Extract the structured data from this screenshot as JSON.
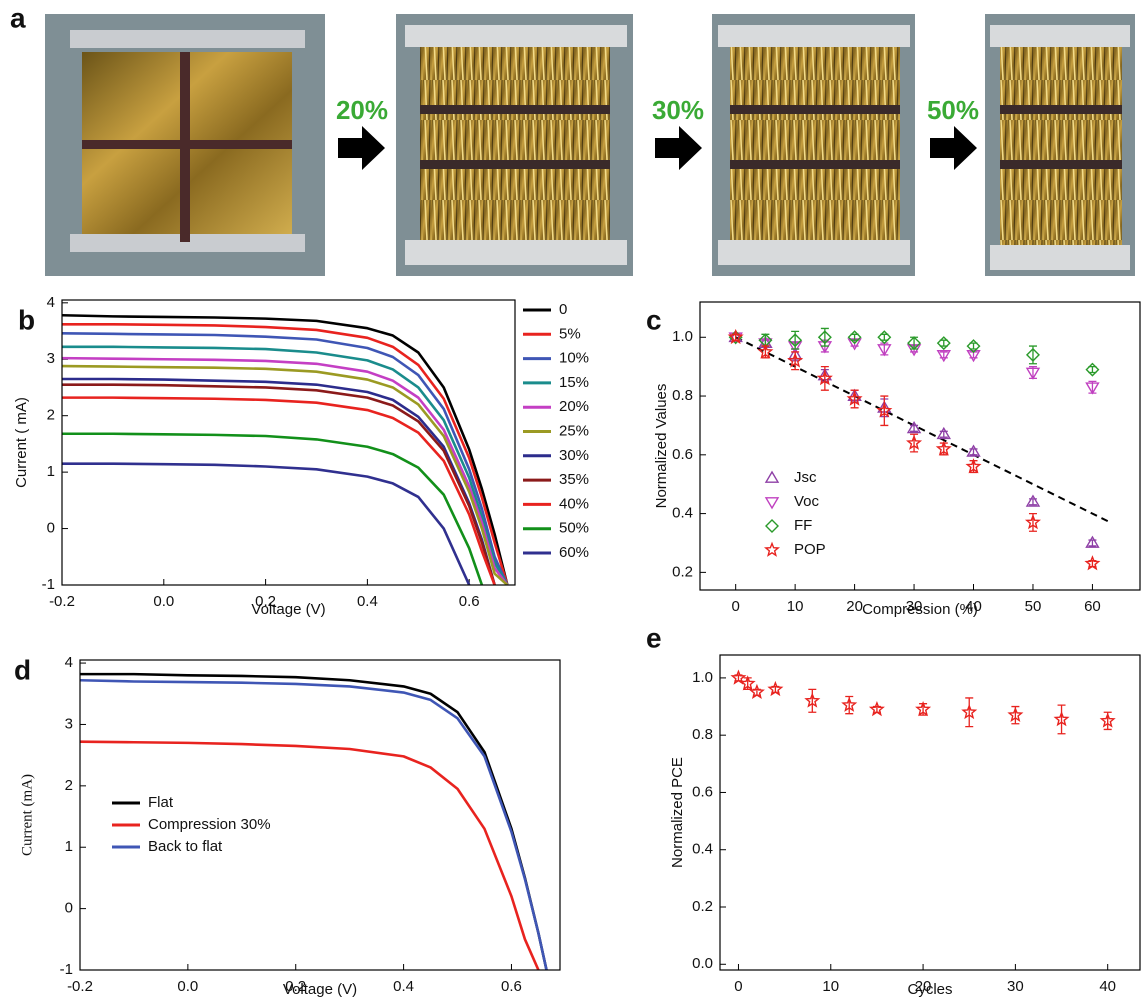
{
  "panel_a": {
    "label": "a",
    "steps": [
      "20%",
      "30%",
      "50%"
    ]
  },
  "chart_data": [
    {
      "type": "line",
      "panel_label": "b",
      "xlabel": "Voltage (V)",
      "ylabel": "Current ( mA)",
      "x": [
        -0.2,
        -0.1,
        0,
        0.1,
        0.2,
        0.3,
        0.4,
        0.45,
        0.5,
        0.55,
        0.6,
        0.625,
        0.65,
        0.675
      ],
      "xlim": [
        -0.2,
        0.69
      ],
      "ylim": [
        -1,
        4.05
      ],
      "xticks": [
        -0.2,
        {
          "value": 0,
          "label": "0.0"
        },
        0.2,
        0.4,
        0.6
      ],
      "yticks": [
        -1,
        0,
        1,
        2,
        3,
        4
      ],
      "legend": "right",
      "series": [
        {
          "name": "0",
          "color": "#000000",
          "values": [
            3.78,
            3.76,
            3.75,
            3.74,
            3.72,
            3.68,
            3.55,
            3.42,
            3.12,
            2.5,
            1.4,
            0.7,
            -0.1,
            -1.0
          ]
        },
        {
          "name": "5%",
          "color": "#e8231f",
          "values": [
            3.62,
            3.62,
            3.61,
            3.6,
            3.57,
            3.52,
            3.38,
            3.22,
            2.9,
            2.3,
            1.25,
            0.55,
            -0.25,
            -1.0
          ]
        },
        {
          "name": "10%",
          "color": "#3f56b5",
          "values": [
            3.46,
            3.45,
            3.44,
            3.43,
            3.4,
            3.35,
            3.2,
            3.04,
            2.72,
            2.12,
            1.05,
            0.35,
            -0.5,
            -1.0
          ]
        },
        {
          "name": "15%",
          "color": "#1a8c8c",
          "values": [
            3.22,
            3.22,
            3.21,
            3.2,
            3.18,
            3.12,
            2.98,
            2.82,
            2.5,
            1.92,
            0.9,
            0.2,
            -0.6,
            -1.0
          ]
        },
        {
          "name": "20%",
          "color": "#c43fc4",
          "values": [
            3.02,
            3.01,
            3.0,
            2.99,
            2.97,
            2.92,
            2.78,
            2.62,
            2.32,
            1.75,
            0.75,
            0.1,
            -0.7,
            -1.0
          ]
        },
        {
          "name": "25%",
          "color": "#9b9a23",
          "values": [
            2.88,
            2.87,
            2.86,
            2.85,
            2.83,
            2.78,
            2.64,
            2.5,
            2.2,
            1.64,
            0.65,
            0.0,
            -0.8,
            -1.0
          ]
        },
        {
          "name": "30%",
          "color": "#2c2c8c",
          "values": [
            2.65,
            2.65,
            2.64,
            2.62,
            2.6,
            2.55,
            2.42,
            2.28,
            1.98,
            1.45,
            0.45,
            -0.2,
            -1.0,
            null
          ]
        },
        {
          "name": "35%",
          "color": "#8b1a1a",
          "values": [
            2.55,
            2.55,
            2.54,
            2.52,
            2.5,
            2.45,
            2.32,
            2.18,
            1.9,
            1.38,
            0.4,
            -0.25,
            -1.0,
            null
          ]
        },
        {
          "name": "40%",
          "color": "#e8231f",
          "values": [
            2.32,
            2.32,
            2.31,
            2.3,
            2.28,
            2.23,
            2.1,
            1.96,
            1.7,
            1.2,
            0.25,
            -0.4,
            -1.0,
            null
          ]
        },
        {
          "name": "50%",
          "color": "#12901a",
          "values": [
            1.68,
            1.68,
            1.67,
            1.66,
            1.64,
            1.58,
            1.45,
            1.32,
            1.08,
            0.6,
            -0.35,
            -1.0,
            null,
            null
          ]
        },
        {
          "name": "60%",
          "color": "#30308f",
          "values": [
            1.15,
            1.15,
            1.14,
            1.13,
            1.1,
            1.05,
            0.92,
            0.8,
            0.56,
            0.0,
            -1.0,
            null,
            null,
            null
          ]
        }
      ]
    },
    {
      "type": "scatter",
      "panel_label": "c",
      "xlabel": "Compression (%)",
      "ylabel": "Normalized Values",
      "x": [
        0,
        5,
        10,
        15,
        20,
        25,
        30,
        35,
        40,
        50,
        60
      ],
      "xlim": [
        -6,
        68
      ],
      "ylim": [
        0.14,
        1.12
      ],
      "xticks": [
        0,
        10,
        20,
        30,
        40,
        50,
        60
      ],
      "yticks": [
        0.2,
        0.4,
        0.6,
        0.8,
        {
          "value": 1,
          "label": "1.0"
        }
      ],
      "legend": "lower left",
      "trend_line": {
        "x": [
          0,
          63
        ],
        "y": [
          1.0,
          0.37
        ],
        "color": "#000000"
      },
      "series": [
        {
          "name": "Jsc",
          "color": "#8e3fa6",
          "marker": "triangle-up",
          "values": [
            1.0,
            0.98,
            0.94,
            0.87,
            0.8,
            0.76,
            0.69,
            0.67,
            0.61,
            0.44,
            0.3
          ],
          "errors": [
            0.01,
            0.01,
            0.02,
            0.02,
            0.02,
            0.03,
            0.01,
            0.01,
            0.01,
            0.01,
            0.01
          ]
        },
        {
          "name": "Voc",
          "color": "#c040c0",
          "marker": "triangle-down",
          "values": [
            1.0,
            0.98,
            0.97,
            0.97,
            0.98,
            0.96,
            0.96,
            0.94,
            0.94,
            0.88,
            0.83
          ],
          "errors": [
            0.01,
            0.01,
            0.01,
            0.02,
            0.01,
            0.02,
            0.01,
            0.01,
            0.01,
            0.02,
            0.02
          ]
        },
        {
          "name": "FF",
          "color": "#2a9a2a",
          "marker": "diamond",
          "values": [
            1.0,
            0.99,
            0.99,
            1.0,
            1.0,
            1.0,
            0.98,
            0.98,
            0.97,
            0.94,
            0.89
          ],
          "errors": [
            0.01,
            0.02,
            0.03,
            0.03,
            0.01,
            0.01,
            0.02,
            0.01,
            0.01,
            0.03,
            0.01
          ]
        },
        {
          "name": "POP",
          "color": "#e8231f",
          "marker": "star",
          "values": [
            1.0,
            0.95,
            0.92,
            0.86,
            0.79,
            0.75,
            0.64,
            0.62,
            0.56,
            0.37,
            0.23
          ],
          "errors": [
            0.01,
            0.02,
            0.03,
            0.04,
            0.03,
            0.05,
            0.03,
            0.02,
            0.02,
            0.03,
            0.01
          ]
        }
      ]
    },
    {
      "type": "line",
      "panel_label": "d",
      "xlabel": "Voltage (V)",
      "ylabel": "Current (mA)",
      "x": [
        -0.2,
        -0.1,
        0,
        0.1,
        0.2,
        0.3,
        0.4,
        0.45,
        0.5,
        0.55,
        0.6,
        0.625,
        0.65,
        0.665
      ],
      "xlim": [
        -0.2,
        0.69
      ],
      "ylim": [
        -1,
        4.05
      ],
      "xticks": [
        -0.2,
        {
          "value": 0,
          "label": "0.0"
        },
        0.2,
        0.4,
        0.6
      ],
      "yticks": [
        -1,
        0,
        1,
        2,
        3,
        4
      ],
      "legend": "lower left",
      "series": [
        {
          "name": "Flat",
          "color": "#000000",
          "values": [
            3.82,
            3.82,
            3.8,
            3.79,
            3.77,
            3.72,
            3.62,
            3.5,
            3.2,
            2.55,
            1.3,
            0.5,
            -0.4,
            -1.0
          ]
        },
        {
          "name": "Compression 30%",
          "color": "#e8231f",
          "values": [
            2.72,
            2.71,
            2.7,
            2.68,
            2.65,
            2.6,
            2.48,
            2.3,
            1.95,
            1.3,
            0.2,
            -0.5,
            -1.0,
            null
          ]
        },
        {
          "name": "Back to flat",
          "color": "#3f56b5",
          "values": [
            3.72,
            3.7,
            3.69,
            3.68,
            3.66,
            3.62,
            3.52,
            3.4,
            3.1,
            2.48,
            1.25,
            0.48,
            -0.4,
            -1.0
          ]
        }
      ]
    },
    {
      "type": "scatter",
      "panel_label": "e",
      "xlabel": "Cycles",
      "ylabel": "Normalized PCE",
      "x": [
        0,
        1,
        2,
        4,
        8,
        12,
        15,
        20,
        25,
        30,
        35,
        40
      ],
      "xlim": [
        -2,
        43.5
      ],
      "ylim": [
        -0.02,
        1.08
      ],
      "xticks": [
        0,
        10,
        20,
        30,
        40
      ],
      "yticks": [
        {
          "value": 0,
          "label": "0.0"
        },
        0.2,
        0.4,
        0.6,
        0.8,
        {
          "value": 1,
          "label": "1.0"
        }
      ],
      "series": [
        {
          "color": "#e8231f",
          "marker": "star",
          "values": [
            1.0,
            0.98,
            0.95,
            0.96,
            0.92,
            0.905,
            0.89,
            0.89,
            0.88,
            0.87,
            0.855,
            0.85
          ],
          "errors": [
            0.01,
            0.02,
            0.01,
            0.01,
            0.04,
            0.03,
            0.01,
            0.02,
            0.05,
            0.03,
            0.05,
            0.03
          ]
        }
      ]
    }
  ]
}
